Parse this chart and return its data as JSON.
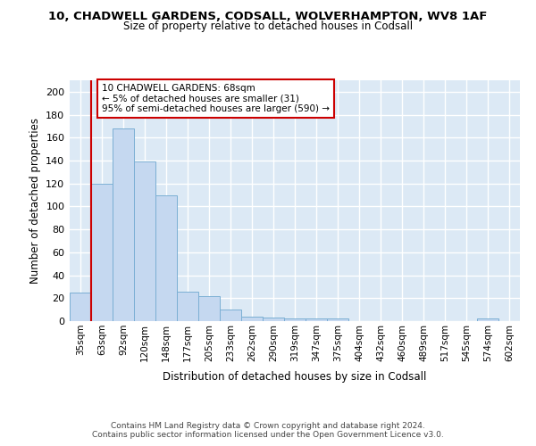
{
  "title_line1": "10, CHADWELL GARDENS, CODSALL, WOLVERHAMPTON, WV8 1AF",
  "title_line2": "Size of property relative to detached houses in Codsall",
  "xlabel": "Distribution of detached houses by size in Codsall",
  "ylabel": "Number of detached properties",
  "bin_labels": [
    "35sqm",
    "63sqm",
    "92sqm",
    "120sqm",
    "148sqm",
    "177sqm",
    "205sqm",
    "233sqm",
    "262sqm",
    "290sqm",
    "319sqm",
    "347sqm",
    "375sqm",
    "404sqm",
    "432sqm",
    "460sqm",
    "489sqm",
    "517sqm",
    "545sqm",
    "574sqm",
    "602sqm"
  ],
  "bar_values": [
    25,
    120,
    168,
    139,
    110,
    26,
    22,
    10,
    4,
    3,
    2,
    2,
    2,
    0,
    0,
    0,
    0,
    0,
    0,
    2,
    0
  ],
  "bar_color": "#c5d8f0",
  "bar_edge_color": "#7bafd4",
  "reference_line_x": 0.5,
  "annotation_text": "10 CHADWELL GARDENS: 68sqm\n← 5% of detached houses are smaller (31)\n95% of semi-detached houses are larger (590) →",
  "annotation_box_color": "#ffffff",
  "annotation_border_color": "#cc0000",
  "ref_line_color": "#cc0000",
  "ylim": [
    0,
    210
  ],
  "yticks": [
    0,
    20,
    40,
    60,
    80,
    100,
    120,
    140,
    160,
    180,
    200
  ],
  "footer_line1": "Contains HM Land Registry data © Crown copyright and database right 2024.",
  "footer_line2": "Contains public sector information licensed under the Open Government Licence v3.0.",
  "bg_color": "#ffffff",
  "plot_bg_color": "#dce9f5",
  "grid_color": "#ffffff"
}
